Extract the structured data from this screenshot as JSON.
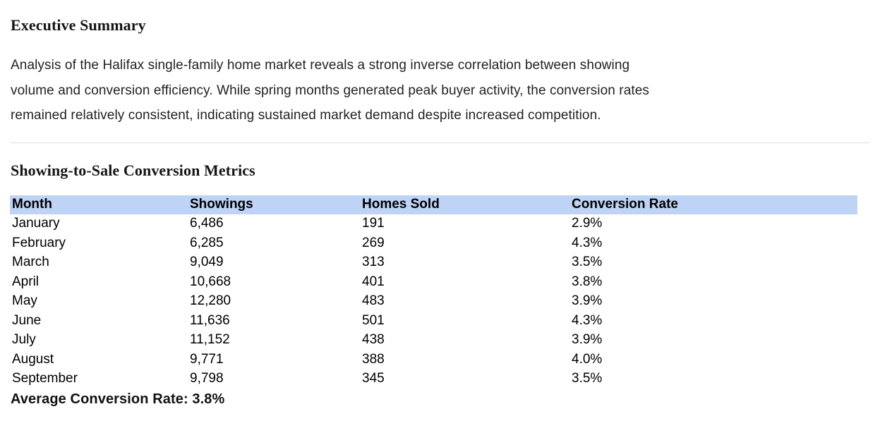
{
  "doc": {
    "exec_heading": "Executive Summary",
    "paragraph_lines": [
      "Analysis of the Halifax single-family home market reveals a strong inverse correlation between showing",
      "volume and conversion efficiency. While spring months generated peak buyer activity, the conversion rates",
      "remained relatively consistent, indicating sustained market demand despite increased competition."
    ],
    "metrics_heading": "Showing-to-Sale Conversion Metrics"
  },
  "table": {
    "headers": [
      "Month",
      "Showings",
      "Homes Sold",
      "Conversion Rate"
    ],
    "rows": [
      {
        "month": "January",
        "showings": "6,486",
        "homes_sold": "191",
        "conversion_rate": "2.9%"
      },
      {
        "month": "February",
        "showings": "6,285",
        "homes_sold": "269",
        "conversion_rate": "4.3%"
      },
      {
        "month": "March",
        "showings": "9,049",
        "homes_sold": "313",
        "conversion_rate": "3.5%"
      },
      {
        "month": "April",
        "showings": "10,668",
        "homes_sold": "401",
        "conversion_rate": "3.8%"
      },
      {
        "month": "May",
        "showings": "12,280",
        "homes_sold": "483",
        "conversion_rate": "3.9%"
      },
      {
        "month": "June",
        "showings": "11,636",
        "homes_sold": "501",
        "conversion_rate": "4.3%"
      },
      {
        "month": "July",
        "showings": "11,152",
        "homes_sold": "438",
        "conversion_rate": "3.9%"
      },
      {
        "month": "August",
        "showings": "9,771",
        "homes_sold": "388",
        "conversion_rate": "4.0%"
      },
      {
        "month": "September",
        "showings": "9,798",
        "homes_sold": "345",
        "conversion_rate": "3.5%"
      }
    ],
    "footer": "Average Conversion Rate: 3.8%"
  },
  "colors": {
    "table_header_bg": "#bed3f5",
    "body_text": "#222222",
    "heading_text": "#161616",
    "divider": "#e0e0e0"
  }
}
